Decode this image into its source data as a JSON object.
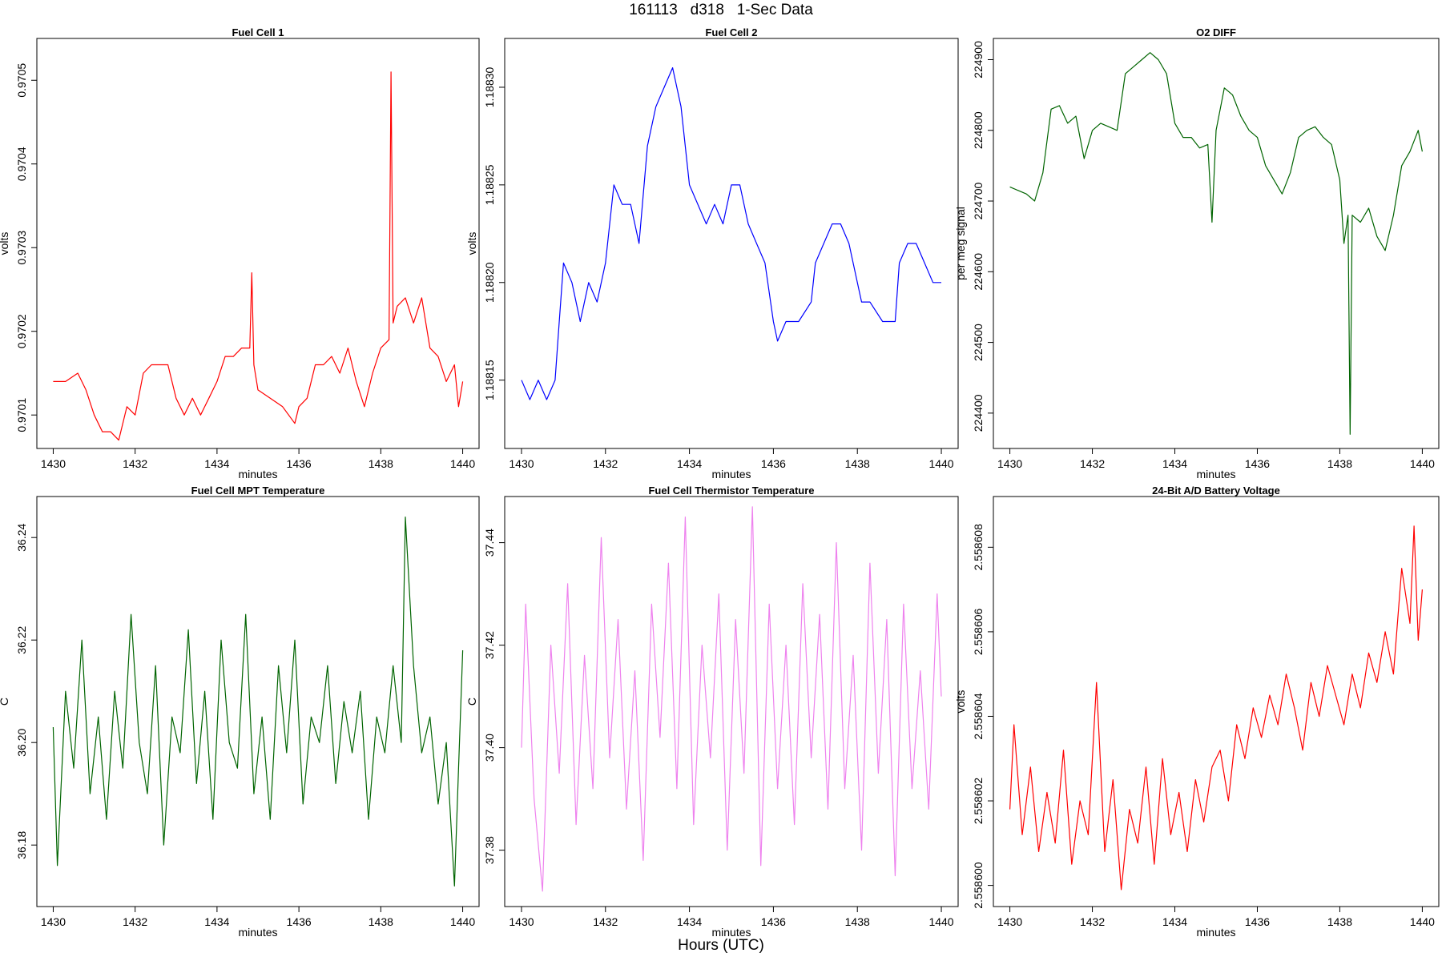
{
  "figure": {
    "title": "161113   d318   1-Sec Data",
    "footer": "Hours (UTC)"
  },
  "chart_data": [
    {
      "type": "line",
      "title": "Fuel Cell 1",
      "xlabel": "minutes",
      "ylabel": "volts",
      "color": "#ff0000",
      "xlim": [
        1429.6,
        1440.4
      ],
      "ylim": [
        0.97006,
        0.97055
      ],
      "xticks": [
        1430,
        1432,
        1434,
        1436,
        1438,
        1440
      ],
      "xtick_labels": [
        "1430",
        "1432",
        "1434",
        "1436",
        "1438",
        "1440"
      ],
      "yticks": [
        0.9701,
        0.9702,
        0.9703,
        0.9704,
        0.9705
      ],
      "ytick_labels": [
        "0.9701",
        "0.9702",
        "0.9703",
        "0.9704",
        "0.9705"
      ],
      "series": [
        {
          "x": [
            1430.0,
            1430.3,
            1430.6,
            1430.8,
            1431.0,
            1431.2,
            1431.4,
            1431.6,
            1431.8,
            1432.0,
            1432.2,
            1432.4,
            1432.6,
            1432.8,
            1433.0,
            1433.2,
            1433.4,
            1433.6,
            1433.8,
            1434.0,
            1434.2,
            1434.4,
            1434.6,
            1434.8,
            1434.85,
            1434.9,
            1435.0,
            1435.3,
            1435.6,
            1435.9,
            1436.0,
            1436.2,
            1436.4,
            1436.6,
            1436.8,
            1437.0,
            1437.2,
            1437.4,
            1437.6,
            1437.8,
            1438.0,
            1438.2,
            1438.25,
            1438.3,
            1438.4,
            1438.6,
            1438.8,
            1439.0,
            1439.2,
            1439.4,
            1439.6,
            1439.8,
            1439.9,
            1440.0
          ],
          "y": [
            0.97014,
            0.97014,
            0.97015,
            0.97013,
            0.9701,
            0.97008,
            0.97008,
            0.97007,
            0.97011,
            0.9701,
            0.97015,
            0.97016,
            0.97016,
            0.97016,
            0.97012,
            0.9701,
            0.97012,
            0.9701,
            0.97012,
            0.97014,
            0.97017,
            0.97017,
            0.97018,
            0.97018,
            0.97027,
            0.97016,
            0.97013,
            0.97012,
            0.97011,
            0.97009,
            0.97011,
            0.97012,
            0.97016,
            0.97016,
            0.97017,
            0.97015,
            0.97018,
            0.97014,
            0.97011,
            0.97015,
            0.97018,
            0.97019,
            0.97051,
            0.97021,
            0.97023,
            0.97024,
            0.97021,
            0.97024,
            0.97018,
            0.97017,
            0.97014,
            0.97016,
            0.97011,
            0.97014
          ]
        }
      ]
    },
    {
      "type": "line",
      "title": "Fuel Cell 2",
      "xlabel": "minutes",
      "ylabel": "volts",
      "color": "#0000ff",
      "xlim": [
        1429.6,
        1440.4
      ],
      "ylim": [
        1.188115,
        1.188325
      ],
      "xticks": [
        1430,
        1432,
        1434,
        1436,
        1438,
        1440
      ],
      "xtick_labels": [
        "1430",
        "1432",
        "1434",
        "1436",
        "1438",
        "1440"
      ],
      "yticks": [
        1.18815,
        1.1882,
        1.18825,
        1.1883
      ],
      "ytick_labels": [
        "1.18815",
        "1.18820",
        "1.18825",
        "1.18830"
      ],
      "series": [
        {
          "x": [
            1430.0,
            1430.2,
            1430.4,
            1430.6,
            1430.8,
            1430.9,
            1431.0,
            1431.2,
            1431.4,
            1431.6,
            1431.8,
            1432.0,
            1432.2,
            1432.4,
            1432.6,
            1432.8,
            1433.0,
            1433.2,
            1433.4,
            1433.6,
            1433.8,
            1434.0,
            1434.2,
            1434.4,
            1434.6,
            1434.8,
            1435.0,
            1435.2,
            1435.4,
            1435.6,
            1435.8,
            1436.0,
            1436.1,
            1436.3,
            1436.6,
            1436.9,
            1437.0,
            1437.2,
            1437.4,
            1437.6,
            1437.8,
            1438.0,
            1438.1,
            1438.3,
            1438.6,
            1438.9,
            1439.0,
            1439.2,
            1439.4,
            1439.6,
            1439.8,
            1440.0
          ],
          "y": [
            1.18815,
            1.18814,
            1.18815,
            1.18814,
            1.18815,
            1.18818,
            1.18821,
            1.1882,
            1.18818,
            1.1882,
            1.18819,
            1.18821,
            1.18825,
            1.18824,
            1.18824,
            1.18822,
            1.18827,
            1.18829,
            1.1883,
            1.18831,
            1.18829,
            1.18825,
            1.18824,
            1.18823,
            1.18824,
            1.18823,
            1.18825,
            1.18825,
            1.18823,
            1.18822,
            1.18821,
            1.18818,
            1.18817,
            1.18818,
            1.18818,
            1.18819,
            1.18821,
            1.18822,
            1.18823,
            1.18823,
            1.18822,
            1.1882,
            1.18819,
            1.18819,
            1.18818,
            1.18818,
            1.18821,
            1.18822,
            1.18822,
            1.18821,
            1.1882,
            1.1882
          ]
        }
      ]
    },
    {
      "type": "line",
      "title": "O2 DIFF",
      "xlabel": "minutes",
      "ylabel": "per meg signal",
      "color": "#006400",
      "xlim": [
        1429.6,
        1440.4
      ],
      "ylim": [
        224350,
        224930
      ],
      "xticks": [
        1430,
        1432,
        1434,
        1436,
        1438,
        1440
      ],
      "xtick_labels": [
        "1430",
        "1432",
        "1434",
        "1436",
        "1438",
        "1440"
      ],
      "yticks": [
        224400,
        224500,
        224600,
        224700,
        224800,
        224900
      ],
      "ytick_labels": [
        "224400",
        "224500",
        "224600",
        "224700",
        "224800",
        "224900"
      ],
      "series": [
        {
          "x": [
            1430.0,
            1430.2,
            1430.4,
            1430.6,
            1430.8,
            1431.0,
            1431.2,
            1431.4,
            1431.6,
            1431.8,
            1432.0,
            1432.2,
            1432.4,
            1432.6,
            1432.8,
            1433.0,
            1433.2,
            1433.4,
            1433.6,
            1433.8,
            1434.0,
            1434.2,
            1434.4,
            1434.6,
            1434.8,
            1434.9,
            1435.0,
            1435.2,
            1435.4,
            1435.6,
            1435.8,
            1436.0,
            1436.2,
            1436.4,
            1436.6,
            1436.8,
            1437.0,
            1437.2,
            1437.4,
            1437.6,
            1437.8,
            1438.0,
            1438.1,
            1438.2,
            1438.25,
            1438.3,
            1438.5,
            1438.7,
            1438.9,
            1439.1,
            1439.3,
            1439.5,
            1439.7,
            1439.9,
            1440.0
          ],
          "y": [
            224720,
            224715,
            224710,
            224700,
            224740,
            224830,
            224835,
            224810,
            224820,
            224760,
            224800,
            224810,
            224805,
            224800,
            224880,
            224890,
            224900,
            224910,
            224900,
            224880,
            224810,
            224790,
            224790,
            224775,
            224780,
            224670,
            224800,
            224860,
            224850,
            224820,
            224800,
            224790,
            224750,
            224730,
            224710,
            224740,
            224790,
            224800,
            224805,
            224790,
            224780,
            224730,
            224640,
            224680,
            224370,
            224680,
            224670,
            224690,
            224650,
            224630,
            224680,
            224750,
            224770,
            224800,
            224770
          ]
        }
      ]
    },
    {
      "type": "line",
      "title": "Fuel Cell MPT Temperature",
      "xlabel": "minutes",
      "ylabel": "C",
      "color": "#006400",
      "xlim": [
        1429.6,
        1440.4
      ],
      "ylim": [
        36.168,
        36.248
      ],
      "xticks": [
        1430,
        1432,
        1434,
        1436,
        1438,
        1440
      ],
      "xtick_labels": [
        "1430",
        "1432",
        "1434",
        "1436",
        "1438",
        "1440"
      ],
      "yticks": [
        36.18,
        36.2,
        36.22,
        36.24
      ],
      "ytick_labels": [
        "36.18",
        "36.20",
        "36.22",
        "36.24"
      ],
      "series": [
        {
          "x": [
            1430.0,
            1430.1,
            1430.3,
            1430.5,
            1430.7,
            1430.9,
            1431.1,
            1431.3,
            1431.5,
            1431.7,
            1431.9,
            1432.1,
            1432.3,
            1432.5,
            1432.7,
            1432.9,
            1433.1,
            1433.3,
            1433.5,
            1433.7,
            1433.9,
            1434.1,
            1434.3,
            1434.5,
            1434.7,
            1434.9,
            1435.1,
            1435.3,
            1435.5,
            1435.7,
            1435.9,
            1436.1,
            1436.3,
            1436.5,
            1436.7,
            1436.9,
            1437.1,
            1437.3,
            1437.5,
            1437.7,
            1437.9,
            1438.1,
            1438.3,
            1438.5,
            1438.6,
            1438.8,
            1439.0,
            1439.2,
            1439.4,
            1439.6,
            1439.8,
            1439.9,
            1440.0
          ],
          "y": [
            36.203,
            36.176,
            36.21,
            36.195,
            36.22,
            36.19,
            36.205,
            36.185,
            36.21,
            36.195,
            36.225,
            36.2,
            36.19,
            36.215,
            36.18,
            36.205,
            36.198,
            36.222,
            36.192,
            36.21,
            36.185,
            36.22,
            36.2,
            36.195,
            36.225,
            36.19,
            36.205,
            36.185,
            36.215,
            36.198,
            36.22,
            36.188,
            36.205,
            36.2,
            36.215,
            36.192,
            36.208,
            36.198,
            36.21,
            36.185,
            36.205,
            36.198,
            36.215,
            36.2,
            36.244,
            36.215,
            36.198,
            36.205,
            36.188,
            36.2,
            36.172,
            36.195,
            36.218
          ]
        }
      ]
    },
    {
      "type": "line",
      "title": "Fuel Cell Thermistor Temperature",
      "xlabel": "minutes",
      "ylabel": "C",
      "color": "#ee82ee",
      "xlim": [
        1429.6,
        1440.4
      ],
      "ylim": [
        37.369,
        37.449
      ],
      "xticks": [
        1430,
        1432,
        1434,
        1436,
        1438,
        1440
      ],
      "xtick_labels": [
        "1430",
        "1432",
        "1434",
        "1436",
        "1438",
        "1440"
      ],
      "yticks": [
        37.38,
        37.4,
        37.42,
        37.44
      ],
      "ytick_labels": [
        "37.38",
        "37.40",
        "37.42",
        "37.44"
      ],
      "series": [
        {
          "x": [
            1430.0,
            1430.1,
            1430.3,
            1430.5,
            1430.7,
            1430.9,
            1431.1,
            1431.3,
            1431.5,
            1431.7,
            1431.9,
            1432.1,
            1432.3,
            1432.5,
            1432.7,
            1432.9,
            1433.1,
            1433.3,
            1433.5,
            1433.7,
            1433.9,
            1434.1,
            1434.3,
            1434.5,
            1434.7,
            1434.9,
            1435.1,
            1435.3,
            1435.5,
            1435.7,
            1435.9,
            1436.1,
            1436.3,
            1436.5,
            1436.7,
            1436.9,
            1437.1,
            1437.3,
            1437.5,
            1437.7,
            1437.9,
            1438.1,
            1438.3,
            1438.5,
            1438.7,
            1438.9,
            1439.1,
            1439.3,
            1439.5,
            1439.7,
            1439.9,
            1440.0
          ],
          "y": [
            37.4,
            37.428,
            37.39,
            37.372,
            37.42,
            37.395,
            37.432,
            37.385,
            37.418,
            37.392,
            37.441,
            37.398,
            37.425,
            37.388,
            37.415,
            37.378,
            37.428,
            37.402,
            37.436,
            37.392,
            37.445,
            37.385,
            37.42,
            37.398,
            37.43,
            37.38,
            37.425,
            37.395,
            37.447,
            37.377,
            37.428,
            37.392,
            37.42,
            37.385,
            37.432,
            37.398,
            37.426,
            37.388,
            37.44,
            37.392,
            37.418,
            37.38,
            37.436,
            37.395,
            37.425,
            37.375,
            37.428,
            37.392,
            37.415,
            37.388,
            37.43,
            37.41
          ]
        }
      ]
    },
    {
      "type": "line",
      "title": "24-Bit A/D Battery Voltage",
      "xlabel": "minutes",
      "ylabel": "volts",
      "color": "#ff0000",
      "xlim": [
        1429.6,
        1440.4
      ],
      "ylim": [
        2.5585995,
        2.5586092
      ],
      "xticks": [
        1430,
        1432,
        1434,
        1436,
        1438,
        1440
      ],
      "xtick_labels": [
        "1430",
        "1432",
        "1434",
        "1436",
        "1438",
        "1440"
      ],
      "yticks": [
        2.5586,
        2.558602,
        2.558604,
        2.558606,
        2.558608
      ],
      "ytick_labels": [
        "2.558600",
        "2.558602",
        "2.558604",
        "2.558606",
        "2.558608"
      ],
      "series": [
        {
          "x": [
            1430.0,
            1430.1,
            1430.3,
            1430.5,
            1430.7,
            1430.9,
            1431.1,
            1431.3,
            1431.5,
            1431.7,
            1431.9,
            1432.1,
            1432.3,
            1432.5,
            1432.7,
            1432.9,
            1433.1,
            1433.3,
            1433.5,
            1433.7,
            1433.9,
            1434.1,
            1434.3,
            1434.5,
            1434.7,
            1434.9,
            1435.1,
            1435.3,
            1435.5,
            1435.7,
            1435.9,
            1436.1,
            1436.3,
            1436.5,
            1436.7,
            1436.9,
            1437.1,
            1437.3,
            1437.5,
            1437.7,
            1437.9,
            1438.1,
            1438.3,
            1438.5,
            1438.7,
            1438.9,
            1439.1,
            1439.3,
            1439.5,
            1439.7,
            1439.8,
            1439.9,
            1440.0
          ],
          "y": [
            2.5586018,
            2.5586038,
            2.5586012,
            2.5586028,
            2.5586008,
            2.5586022,
            2.558601,
            2.5586032,
            2.5586005,
            2.558602,
            2.5586012,
            2.5586048,
            2.5586008,
            2.5586025,
            2.5585999,
            2.5586018,
            2.558601,
            2.5586028,
            2.5586005,
            2.558603,
            2.5586012,
            2.5586022,
            2.5586008,
            2.5586025,
            2.5586015,
            2.5586028,
            2.5586032,
            2.558602,
            2.5586038,
            2.558603,
            2.5586042,
            2.5586035,
            2.5586045,
            2.5586038,
            2.558605,
            2.5586042,
            2.5586032,
            2.5586048,
            2.558604,
            2.5586052,
            2.5586045,
            2.5586038,
            2.558605,
            2.5586042,
            2.5586055,
            2.5586048,
            2.558606,
            2.558605,
            2.5586075,
            2.5586062,
            2.5586085,
            2.5586058,
            2.558607
          ]
        }
      ]
    }
  ]
}
